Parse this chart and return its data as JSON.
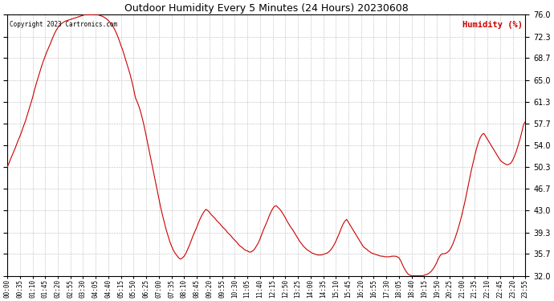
{
  "title": "Outdoor Humidity Every 5 Minutes (24 Hours) 20230608",
  "copyright": "Copyright 2023 Cartronics.com",
  "legend_label": "Humidity (%)",
  "line_color": "#cc0000",
  "background_color": "#ffffff",
  "grid_color": "#bbbbbb",
  "yticks": [
    32.0,
    35.7,
    39.3,
    43.0,
    46.7,
    50.3,
    54.0,
    57.7,
    61.3,
    65.0,
    68.7,
    72.3,
    76.0
  ],
  "ylim": [
    32.0,
    76.0
  ],
  "tick_every_n_points": 7,
  "minutes_per_point": 5,
  "humidity_values": [
    50.3,
    51.0,
    51.8,
    52.5,
    53.2,
    54.0,
    54.8,
    55.5,
    56.3,
    57.2,
    58.0,
    59.0,
    60.0,
    61.0,
    62.0,
    63.2,
    64.3,
    65.3,
    66.3,
    67.3,
    68.2,
    69.0,
    69.8,
    70.5,
    71.2,
    72.0,
    72.7,
    73.3,
    73.8,
    74.2,
    74.5,
    74.7,
    74.9,
    75.0,
    75.1,
    75.2,
    75.3,
    75.4,
    75.5,
    75.6,
    75.7,
    75.8,
    75.9,
    76.0,
    76.0,
    76.0,
    76.0,
    76.0,
    76.0,
    76.0,
    76.0,
    75.9,
    75.8,
    75.7,
    75.5,
    75.3,
    75.0,
    74.7,
    74.3,
    73.8,
    73.2,
    72.5,
    71.7,
    70.8,
    70.0,
    69.0,
    68.0,
    67.0,
    66.0,
    64.8,
    63.5,
    62.0,
    61.3,
    60.5,
    59.5,
    58.3,
    57.0,
    55.5,
    54.0,
    52.5,
    51.0,
    49.5,
    48.0,
    46.5,
    45.0,
    43.5,
    42.2,
    41.0,
    39.8,
    38.8,
    37.8,
    37.0,
    36.3,
    35.8,
    35.4,
    35.0,
    34.8,
    35.0,
    35.3,
    35.8,
    36.5,
    37.2,
    38.0,
    38.8,
    39.5,
    40.2,
    41.0,
    41.7,
    42.3,
    42.8,
    43.2,
    43.0,
    42.7,
    42.3,
    42.0,
    41.7,
    41.3,
    41.0,
    40.7,
    40.3,
    40.0,
    39.7,
    39.3,
    39.0,
    38.7,
    38.3,
    38.0,
    37.7,
    37.3,
    37.0,
    36.8,
    36.5,
    36.3,
    36.2,
    36.0,
    36.0,
    36.2,
    36.5,
    37.0,
    37.5,
    38.2,
    39.0,
    39.8,
    40.5,
    41.2,
    42.0,
    42.7,
    43.3,
    43.7,
    43.8,
    43.5,
    43.2,
    42.8,
    42.3,
    41.8,
    41.2,
    40.7,
    40.2,
    39.8,
    39.3,
    38.8,
    38.3,
    37.8,
    37.4,
    37.0,
    36.7,
    36.4,
    36.2,
    36.0,
    35.8,
    35.7,
    35.6,
    35.5,
    35.5,
    35.5,
    35.6,
    35.7,
    35.8,
    36.0,
    36.3,
    36.7,
    37.2,
    37.8,
    38.5,
    39.2,
    40.0,
    40.7,
    41.2,
    41.5,
    41.0,
    40.5,
    40.0,
    39.5,
    39.0,
    38.5,
    38.0,
    37.5,
    37.0,
    36.7,
    36.5,
    36.2,
    36.0,
    35.8,
    35.7,
    35.6,
    35.5,
    35.4,
    35.3,
    35.3,
    35.2,
    35.2,
    35.2,
    35.2,
    35.3,
    35.3,
    35.3,
    35.2,
    35.0,
    34.5,
    33.8,
    33.2,
    32.7,
    32.3,
    32.1,
    32.0,
    32.0,
    32.0,
    32.0,
    32.0,
    32.0,
    32.0,
    32.1,
    32.2,
    32.3,
    32.5,
    32.8,
    33.2,
    33.7,
    34.3,
    35.0,
    35.5,
    35.7,
    35.7,
    35.8,
    36.0,
    36.3,
    36.8,
    37.5,
    38.3,
    39.2,
    40.2,
    41.3,
    42.5,
    43.8,
    45.2,
    46.7,
    48.2,
    49.7,
    51.0,
    52.3,
    53.5,
    54.5,
    55.3,
    55.8,
    56.0,
    55.5,
    55.0,
    54.5,
    54.0,
    53.5,
    53.0,
    52.5,
    52.0,
    51.5,
    51.2,
    51.0,
    50.8,
    50.7,
    50.8,
    51.0,
    51.5,
    52.2,
    53.0,
    54.0,
    55.0,
    56.2,
    57.5,
    58.0
  ]
}
